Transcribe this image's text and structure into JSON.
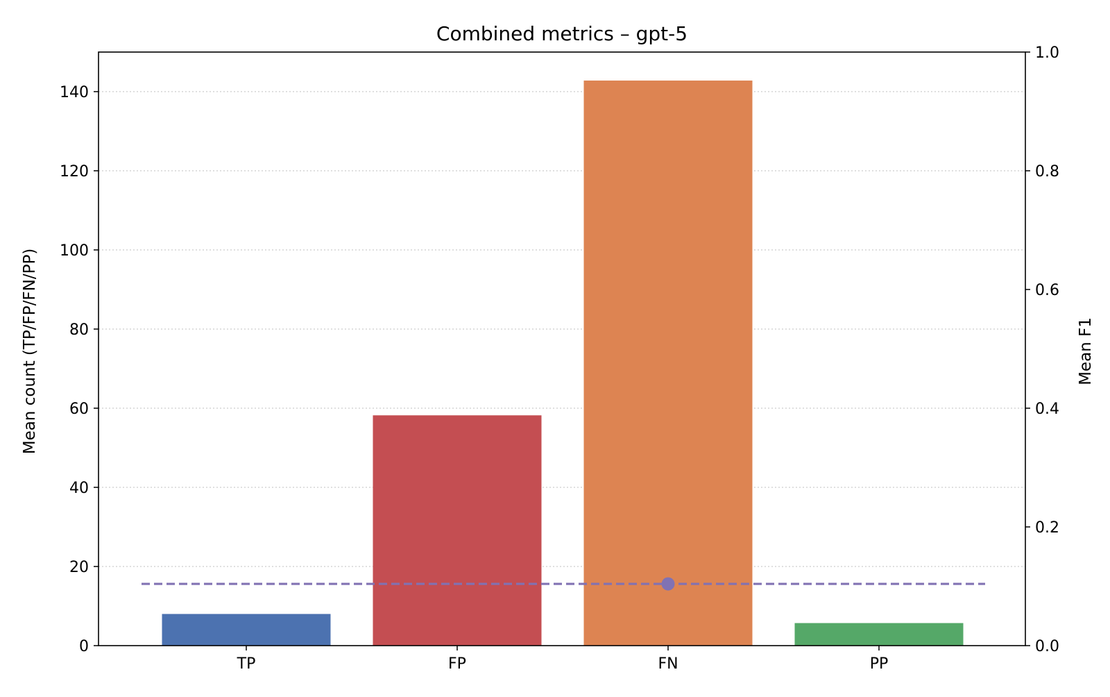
{
  "chart_data": {
    "type": "bar",
    "title": "Combined metrics – gpt-5",
    "xlabel": "",
    "ylabel": "Mean count (TP/FP/FN/PP)",
    "y2label": "Mean F1",
    "categories": [
      "TP",
      "FP",
      "FN",
      "PP"
    ],
    "values": [
      8.0,
      58.2,
      142.8,
      5.7
    ],
    "bar_colors": [
      "#4c72b0",
      "#c44e52",
      "#dd8452",
      "#55a868"
    ],
    "ylim": [
      0,
      150
    ],
    "yticks": [
      0,
      20,
      40,
      60,
      80,
      100,
      120,
      140
    ],
    "y2lim": [
      0,
      1.0
    ],
    "y2ticks": [
      "0.0",
      "0.2",
      "0.4",
      "0.6",
      "0.8",
      "1.0"
    ],
    "f1": {
      "value": 0.104,
      "category": "FN",
      "color": "#8172b3",
      "style": "dashed"
    },
    "grid": "y-dotted",
    "legend": "none"
  }
}
